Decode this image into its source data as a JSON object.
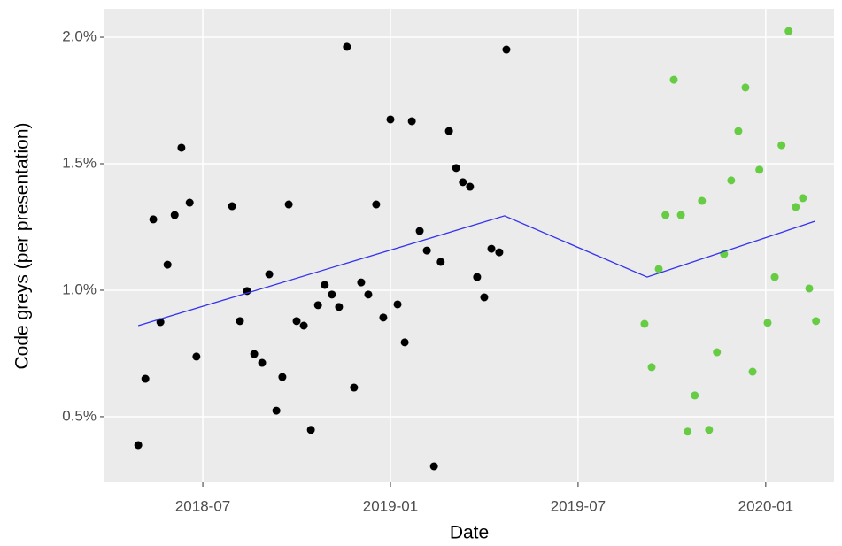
{
  "chart_data": {
    "type": "scatter",
    "x_label": "Date",
    "y_label": "Code greys (per presentation)",
    "xlim": [
      2018.238,
      2020.182
    ],
    "ylim": [
      0.241,
      2.112
    ],
    "xticks": [
      {
        "value": 2018.5,
        "label": "2018-07"
      },
      {
        "value": 2019.0,
        "label": "2019-01"
      },
      {
        "value": 2019.5,
        "label": "2019-07"
      },
      {
        "value": 2020.0,
        "label": "2020-01"
      }
    ],
    "yticks": [
      {
        "value": 0.5,
        "label": "0.5%"
      },
      {
        "value": 1.0,
        "label": "1.0%"
      },
      {
        "value": 1.5,
        "label": "1.5%"
      },
      {
        "value": 2.0,
        "label": "2.0%"
      }
    ],
    "grid": true,
    "series": [
      {
        "type": "points",
        "color": "#000000",
        "x": [
          2018.328,
          2018.347,
          2018.368,
          2018.387,
          2018.406,
          2018.425,
          2018.443,
          2018.465,
          2018.483,
          2018.578,
          2018.599,
          2018.618,
          2018.637,
          2018.658,
          2018.677,
          2018.696,
          2018.712,
          2018.729,
          2018.75,
          2018.769,
          2018.788,
          2018.807,
          2018.825,
          2018.844,
          2018.863,
          2018.884,
          2018.903,
          2018.922,
          2018.941,
          2018.962,
          2018.981,
          2019.0,
          2019.019,
          2019.038,
          2019.057,
          2019.078,
          2019.097,
          2019.116,
          2019.134,
          2019.156,
          2019.175,
          2019.193,
          2019.212,
          2019.231,
          2019.25,
          2019.269,
          2019.29,
          2019.309
        ],
        "values": [
          0.388,
          0.65,
          1.28,
          0.874,
          1.101,
          1.297,
          1.563,
          1.346,
          0.738,
          1.332,
          0.878,
          0.997,
          0.748,
          0.713,
          1.063,
          0.524,
          0.657,
          1.339,
          0.878,
          0.86,
          0.448,
          0.941,
          1.021,
          0.983,
          0.934,
          1.962,
          0.615,
          1.031,
          0.983,
          1.339,
          0.892,
          1.675,
          0.944,
          0.794,
          1.668,
          1.234,
          1.157,
          0.304,
          1.112,
          1.629,
          1.483,
          1.427,
          1.409,
          1.052,
          0.972,
          1.164,
          1.15,
          1.951
        ]
      },
      {
        "type": "points",
        "color": "#66cc44",
        "x": [
          2019.677,
          2019.696,
          2019.715,
          2019.733,
          2019.755,
          2019.774,
          2019.792,
          2019.811,
          2019.83,
          2019.849,
          2019.87,
          2019.889,
          2019.908,
          2019.927,
          2019.946,
          2019.965,
          2019.983,
          2020.005,
          2020.024,
          2020.042,
          2020.061,
          2020.08,
          2020.099,
          2020.116,
          2020.134
        ],
        "values": [
          0.867,
          0.696,
          1.084,
          1.297,
          1.832,
          1.297,
          0.441,
          0.584,
          1.353,
          0.448,
          0.755,
          1.143,
          1.434,
          1.629,
          1.801,
          0.678,
          1.476,
          0.871,
          1.052,
          1.573,
          2.024,
          1.329,
          1.364,
          1.007,
          0.878
        ]
      },
      {
        "type": "line",
        "color": "#3333ee",
        "x": [
          2018.328,
          2019.304,
          2019.684,
          2020.132
        ],
        "values": [
          0.86,
          1.294,
          1.052,
          1.273
        ]
      }
    ]
  }
}
